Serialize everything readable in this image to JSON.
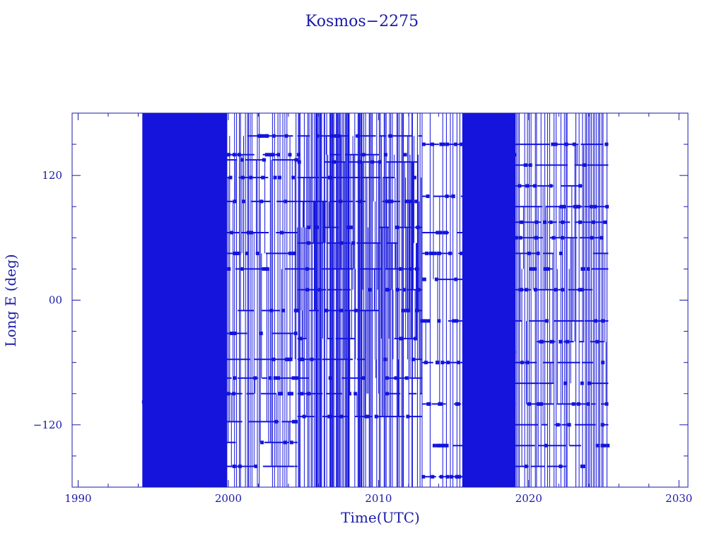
{
  "chart_data": {
    "type": "scatter",
    "title": "Kosmos−2275",
    "xlabel": "Time(UTC)",
    "ylabel": "Long E (deg)",
    "xlim": [
      1989.6,
      2030.6
    ],
    "ylim": [
      -180,
      180
    ],
    "xticks": [
      1990,
      2000,
      2010,
      2020,
      2030
    ],
    "xtick_labels": [
      "1990",
      "2000",
      "2010",
      "2020",
      "2030"
    ],
    "yticks": [
      -120,
      0,
      120
    ],
    "ytick_labels": [
      "−120",
      "00",
      "120"
    ],
    "grid": false,
    "color": "#1414dc",
    "series": [
      {
        "segments": [
          {
            "start": 1994.3,
            "end": 1999.9,
            "density": "solid",
            "levels": [
              150,
              137,
              118,
              73,
              55,
              -15,
              -35,
              -75,
              -98,
              -120,
              -137,
              -160
            ]
          },
          {
            "start": 1999.9,
            "end": 2004.6,
            "density": "mixed",
            "levels": [
              158,
              140,
              135,
              118,
              95,
              65,
              45,
              30,
              -10,
              -32,
              -57,
              -75,
              -90,
              -117,
              -137,
              -160
            ]
          },
          {
            "start": 2004.6,
            "end": 2012.9,
            "density": "dense",
            "levels": [
              158,
              140,
              133,
              118,
              95,
              70,
              55,
              30,
              10,
              -10,
              -37,
              -57,
              -75,
              -90,
              -112
            ]
          },
          {
            "start": 2012.9,
            "end": 2015.6,
            "density": "sparse",
            "levels": [
              150,
              100,
              65,
              45,
              20,
              -20,
              -60,
              -100,
              -140,
              -170
            ]
          },
          {
            "start": 2015.6,
            "end": 2019.1,
            "density": "solid",
            "levels": [
              140,
              95,
              55,
              10,
              -50,
              -100,
              -140,
              -170
            ]
          },
          {
            "start": 2019.1,
            "end": 2025.3,
            "density": "mixed",
            "levels": [
              150,
              130,
              110,
              90,
              75,
              60,
              45,
              30,
              10,
              -20,
              -40,
              -60,
              -80,
              -100,
              -120,
              -140,
              -160
            ]
          }
        ]
      }
    ]
  }
}
